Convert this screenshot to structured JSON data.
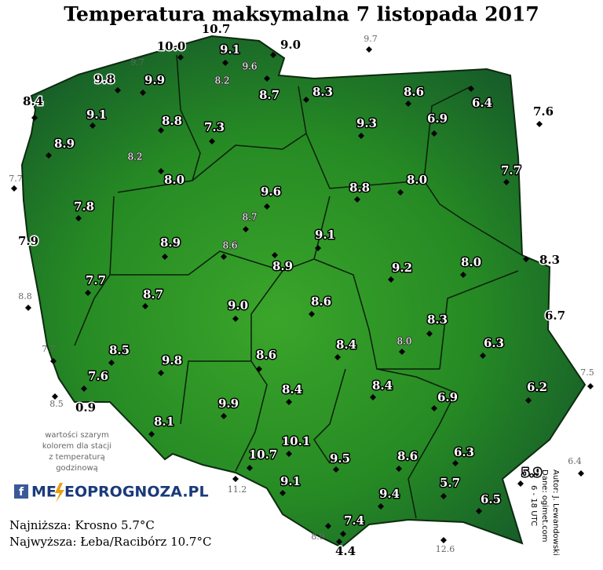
{
  "header": {
    "title": "Temperatura maksymalna 7 listopada 2017"
  },
  "stations": [
    "10.7",
    "10.0",
    "9.1",
    "9.0",
    "9.7",
    "9.7",
    "9.6",
    "9.8",
    "9.9",
    "8.2",
    "8.7",
    "8.3",
    "8.6",
    "6.4",
    "7.6",
    "8.4",
    "9.1",
    "8.8",
    "7.3",
    "9.3",
    "6.9",
    "8.9",
    "8.2",
    "7.7",
    "8.0",
    "9.6",
    "8.8",
    "8.0",
    "7.7",
    "7.8",
    "8.7",
    "7.9",
    "8.9",
    "8.6",
    "9.1",
    "8.9",
    "9.2",
    "8.0",
    "8.3",
    "7.7",
    "8.8",
    "8.7",
    "9.0",
    "8.6",
    "8.3",
    "6.7",
    "7.7",
    "8.5",
    "9.8",
    "8.6",
    "8.4",
    "8.0",
    "6.3",
    "7.5",
    "7.6",
    "8.5",
    "0.9",
    "9.9",
    "8.4",
    "8.4",
    "6.9",
    "6.2",
    "8.1",
    "10.1",
    "10.7",
    "9.5",
    "8.6",
    "6.3",
    "5.9",
    "6.4",
    "11.2",
    "9.1",
    "5.7",
    "9.4",
    "6.5",
    "7.4",
    "8.9",
    "4.4",
    "12.6"
  ],
  "note": [
    "wartości szarym",
    "kolorem dla stacji",
    "z temperaturą",
    "godzinową"
  ],
  "logo": {
    "left": "ME",
    "right": "EOPROGNOZA.PL"
  },
  "summary": [
    "Najniższa: Krosno 5.7°C",
    "Najwyższa: Łeba/Racibórz 10.7°C"
  ],
  "credits": [
    "Autor: J. Lewandowski",
    "Dane: ogimet.com",
    "6 - 18 UTC"
  ]
}
